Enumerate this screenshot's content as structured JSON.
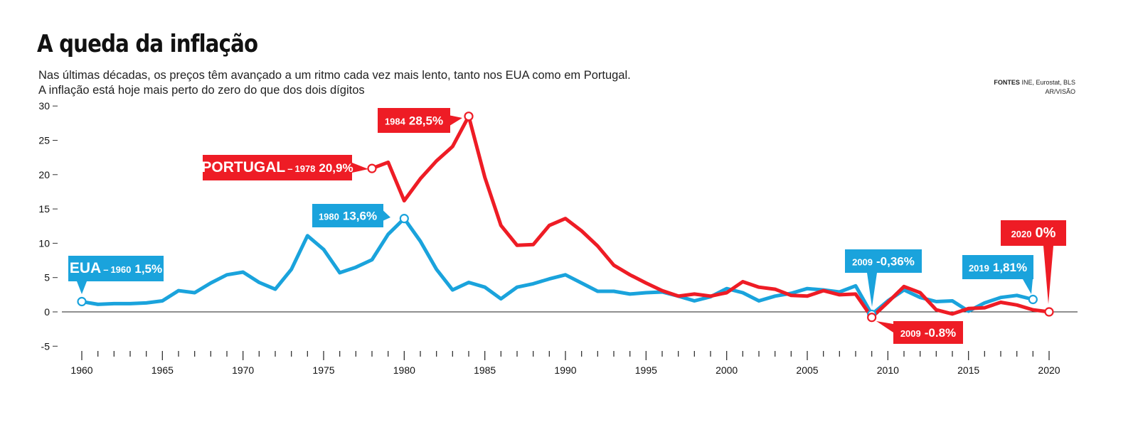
{
  "title": "A queda da inflação",
  "subtitle_line1": "Nas últimas décadas, os preços têm avançado a um ritmo cada vez mais lento, tanto nos EUA como em Portugal.",
  "subtitle_line2": "A inflação está hoje mais perto do zero do que dos dois dígitos",
  "sources": {
    "label": "FONTES",
    "text": "INE, Eurostat, BLS",
    "credit": "AR/VISÃO"
  },
  "colors": {
    "portugal": "#ee1c25",
    "eua": "#1aa3dc"
  },
  "chart_data": {
    "type": "line",
    "xlim": [
      1960,
      2020
    ],
    "ylim": [
      -5,
      30
    ],
    "y_ticks": [
      30,
      25,
      20,
      15,
      10,
      5,
      0,
      -5
    ],
    "x_ticks": [
      1960,
      1965,
      1970,
      1975,
      1980,
      1985,
      1990,
      1995,
      2000,
      2005,
      2010,
      2015,
      2020
    ],
    "series": [
      {
        "name": "EUA",
        "color": "#1aa3dc",
        "x": [
          1960,
          1961,
          1962,
          1963,
          1964,
          1965,
          1966,
          1967,
          1968,
          1969,
          1970,
          1971,
          1972,
          1973,
          1974,
          1975,
          1976,
          1977,
          1978,
          1979,
          1980,
          1981,
          1982,
          1983,
          1984,
          1985,
          1986,
          1987,
          1988,
          1989,
          1990,
          1991,
          1992,
          1993,
          1994,
          1995,
          1996,
          1997,
          1998,
          1999,
          2000,
          2001,
          2002,
          2003,
          2004,
          2005,
          2006,
          2007,
          2008,
          2009,
          2010,
          2011,
          2012,
          2013,
          2014,
          2015,
          2016,
          2017,
          2018,
          2019
        ],
        "values": [
          1.5,
          1.1,
          1.2,
          1.2,
          1.3,
          1.6,
          3.1,
          2.8,
          4.2,
          5.4,
          5.8,
          4.3,
          3.3,
          6.2,
          11.1,
          9.1,
          5.7,
          6.5,
          7.6,
          11.3,
          13.6,
          10.3,
          6.2,
          3.2,
          4.3,
          3.6,
          1.9,
          3.6,
          4.1,
          4.8,
          5.4,
          4.2,
          3.0,
          3.0,
          2.6,
          2.8,
          2.9,
          2.3,
          1.6,
          2.2,
          3.4,
          2.8,
          1.6,
          2.3,
          2.7,
          3.4,
          3.2,
          2.9,
          3.8,
          -0.36,
          1.6,
          3.2,
          2.1,
          1.5,
          1.6,
          0.1,
          1.3,
          2.1,
          2.4,
          1.81
        ]
      },
      {
        "name": "PORTUGAL",
        "color": "#ee1c25",
        "x": [
          1978,
          1979,
          1980,
          1981,
          1982,
          1983,
          1984,
          1985,
          1986,
          1987,
          1988,
          1989,
          1990,
          1991,
          1992,
          1993,
          1994,
          1995,
          1996,
          1997,
          1998,
          1999,
          2000,
          2001,
          2002,
          2003,
          2004,
          2005,
          2006,
          2007,
          2008,
          2009,
          2010,
          2011,
          2012,
          2013,
          2014,
          2015,
          2016,
          2017,
          2018,
          2019,
          2020
        ],
        "values": [
          20.9,
          21.8,
          16.2,
          19.4,
          22.0,
          24.1,
          28.5,
          19.6,
          12.6,
          9.7,
          9.8,
          12.6,
          13.6,
          11.8,
          9.6,
          6.8,
          5.4,
          4.2,
          3.1,
          2.3,
          2.6,
          2.3,
          2.8,
          4.4,
          3.6,
          3.3,
          2.4,
          2.3,
          3.1,
          2.5,
          2.6,
          -0.8,
          1.4,
          3.7,
          2.8,
          0.3,
          -0.3,
          0.5,
          0.6,
          1.4,
          1.0,
          0.3,
          0.0
        ]
      }
    ],
    "annotations": [
      {
        "series": "EUA",
        "x": 1960,
        "y": 1.5,
        "lead": "EUA",
        "year": "1960",
        "value": "1,5%",
        "color": "#1aa3dc"
      },
      {
        "series": "EUA",
        "x": 1980,
        "y": 13.6,
        "lead": "",
        "year": "1980",
        "value": "13,6%",
        "color": "#1aa3dc"
      },
      {
        "series": "EUA",
        "x": 2009,
        "y": -0.36,
        "lead": "",
        "year": "2009",
        "value": "-0,36%",
        "color": "#1aa3dc"
      },
      {
        "series": "EUA",
        "x": 2019,
        "y": 1.81,
        "lead": "",
        "year": "2019",
        "value": "1,81%",
        "color": "#1aa3dc"
      },
      {
        "series": "PORTUGAL",
        "x": 1978,
        "y": 20.9,
        "lead": "PORTUGAL",
        "year": "1978",
        "value": "20,9%",
        "color": "#ee1c25"
      },
      {
        "series": "PORTUGAL",
        "x": 1984,
        "y": 28.5,
        "lead": "",
        "year": "1984",
        "value": "28,5%",
        "color": "#ee1c25"
      },
      {
        "series": "PORTUGAL",
        "x": 2009,
        "y": -0.8,
        "lead": "",
        "year": "2009",
        "value": "-0.8%",
        "color": "#ee1c25"
      },
      {
        "series": "PORTUGAL",
        "x": 2020,
        "y": 0.0,
        "lead": "",
        "year": "2020",
        "value": "0%",
        "color": "#ee1c25"
      }
    ]
  }
}
